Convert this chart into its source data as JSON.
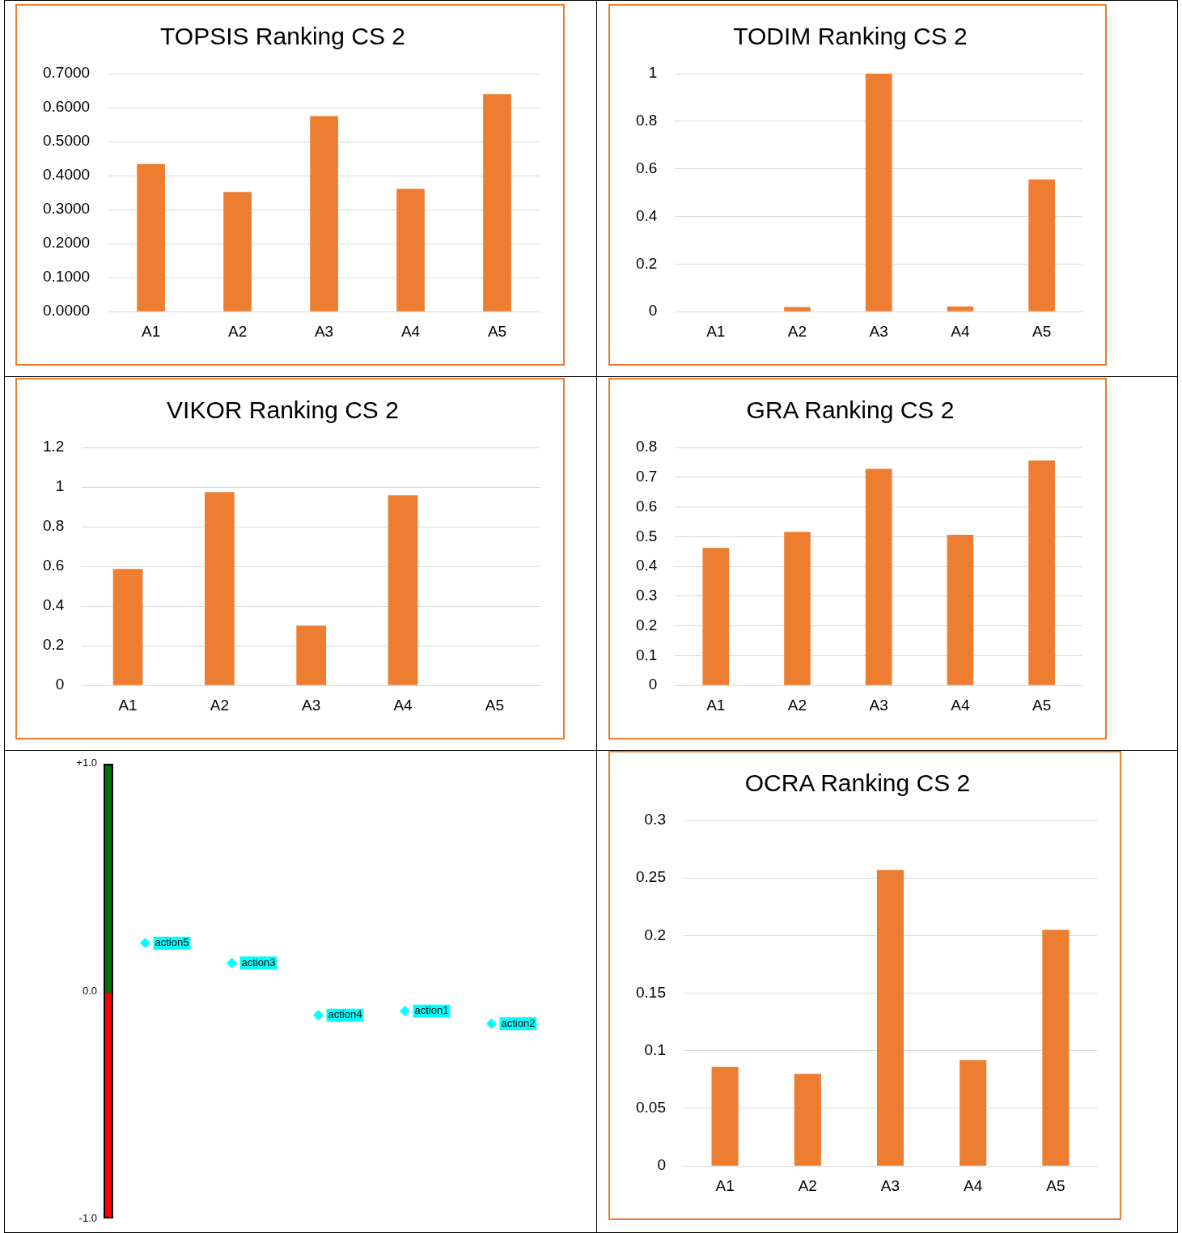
{
  "chart_data": [
    {
      "type": "bar",
      "title": "TOPSIS Ranking CS 2",
      "categories": [
        "A1",
        "A2",
        "A3",
        "A4",
        "A5"
      ],
      "values": [
        0.434,
        0.352,
        0.575,
        0.361,
        0.64
      ],
      "color": "#ed7d31",
      "ylim": [
        0,
        0.7
      ],
      "yticks": [
        {
          "value": 0,
          "label": "0.0000"
        },
        {
          "value": 0.1,
          "label": "0.1000"
        },
        {
          "value": 0.2,
          "label": "0.2000"
        },
        {
          "value": 0.3,
          "label": "0.3000"
        },
        {
          "value": 0.4,
          "label": "0.4000"
        },
        {
          "value": 0.5,
          "label": "0.5000"
        },
        {
          "value": 0.6,
          "label": "0.6000"
        },
        {
          "value": 0.7,
          "label": "0.7000"
        }
      ],
      "grid": "y"
    },
    {
      "type": "bar",
      "title": "TODIM Ranking CS 2",
      "categories": [
        "A1",
        "A2",
        "A3",
        "A4",
        "A5"
      ],
      "values": [
        0,
        0.019,
        1,
        0.022,
        0.556
      ],
      "color": "#ed7d31",
      "ylim": [
        0,
        1
      ],
      "yticks": [
        0,
        0.2,
        0.4,
        0.6,
        0.8,
        1
      ],
      "grid": "y"
    },
    {
      "type": "bar",
      "title": "VIKOR Ranking CS 2",
      "categories": [
        "A1",
        "A2",
        "A3",
        "A4",
        "A5"
      ],
      "values": [
        0.587,
        0.975,
        0.302,
        0.958,
        0
      ],
      "color": "#ed7d31",
      "ylim": [
        0,
        1.2
      ],
      "yticks": [
        0,
        0.2,
        0.4,
        0.6,
        0.8,
        1,
        1.2
      ],
      "grid": "y"
    },
    {
      "type": "bar",
      "title": "GRA Ranking CS 2",
      "categories": [
        "A1",
        "A2",
        "A3",
        "A4",
        "A5"
      ],
      "values": [
        0.462,
        0.516,
        0.728,
        0.506,
        0.756
      ],
      "color": "#ed7d31",
      "ylim": [
        0,
        0.8
      ],
      "yticks": [
        0,
        0.1,
        0.2,
        0.3,
        0.4,
        0.5,
        0.6,
        0.7,
        0.8
      ],
      "grid": "y"
    },
    {
      "type": "scatter",
      "categories": [
        null,
        null,
        null,
        null,
        null
      ],
      "values": [
        0.211,
        0.124,
        -0.106,
        -0.088,
        -0.143
      ],
      "color": "#00ffff",
      "marker": "diamond",
      "annotations": [
        "action5",
        "action3",
        "action4",
        "action1",
        "action2"
      ],
      "ylim": [
        -1,
        1
      ],
      "yticks": [
        {
          "value": 1,
          "label": "+1.0"
        },
        {
          "value": 0,
          "label": "0.0"
        },
        {
          "value": -1,
          "label": "-1.0"
        }
      ],
      "tick_labels": "y",
      "grid": false
    },
    {
      "type": "bar",
      "title": "OCRA Ranking CS 2",
      "categories": [
        "A1",
        "A2",
        "A3",
        "A4",
        "A5"
      ],
      "values": [
        0.086,
        0.08,
        0.257,
        0.092,
        0.205
      ],
      "color": "#ed7d31",
      "ylim": [
        0,
        0.3
      ],
      "yticks": [
        0,
        0.05,
        0.1,
        0.15,
        0.2,
        0.25,
        0.3
      ],
      "grid": "y"
    }
  ]
}
